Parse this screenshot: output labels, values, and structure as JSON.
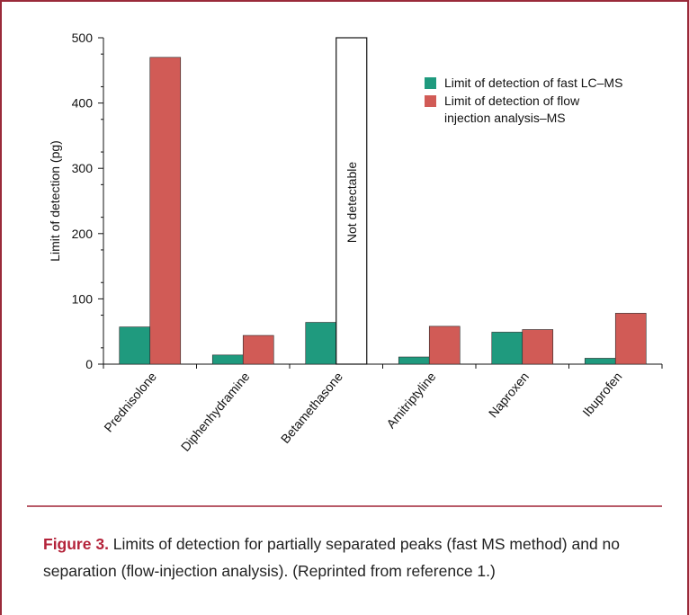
{
  "chart_data": {
    "type": "bar",
    "title": "",
    "xlabel": "",
    "ylabel": "Limit of detection (pg)",
    "ylim": [
      0,
      500
    ],
    "yticks": [
      0,
      100,
      200,
      300,
      400,
      500
    ],
    "categories": [
      "Prednisolone",
      "Diphenhydramine",
      "Betamethasone",
      "Amitriptyline",
      "Naproxen",
      "Ibuprofen"
    ],
    "series": [
      {
        "name": "Limit of detection of fast LC–MS",
        "color": "#1f9a7e",
        "values": [
          57,
          14,
          64,
          11,
          49,
          9
        ]
      },
      {
        "name": "Limit of detection of flow injection analysis–MS",
        "color": "#d15b56",
        "values": [
          470,
          44,
          null,
          58,
          53,
          78
        ]
      }
    ],
    "legend_placement": "top-right",
    "legend_lines": [
      [
        "Limit of detection of fast LC–MS"
      ],
      [
        "Limit of detection of flow",
        "injection analysis–MS"
      ]
    ],
    "annotations": [
      {
        "text": "Not detectable",
        "category": "Betamethasone",
        "series": 1,
        "value": 500
      }
    ],
    "grid": false
  },
  "caption": {
    "label": "Figure 3.",
    "text": " Limits of detection for partially separated peaks (fast MS method) and no separation (flow-injection analysis). (Reprinted from reference 1.)"
  }
}
